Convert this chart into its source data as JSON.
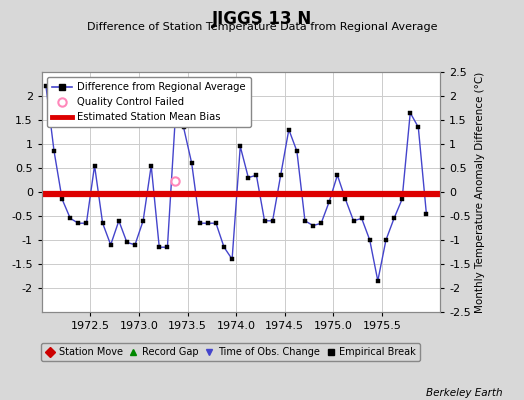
{
  "title": "JIGGS 13 N",
  "subtitle": "Difference of Station Temperature Data from Regional Average",
  "ylabel": "Monthly Temperature Anomaly Difference (°C)",
  "credit": "Berkeley Earth",
  "xlim": [
    1972.0,
    1976.1
  ],
  "ylim": [
    -2.5,
    2.5
  ],
  "yticks_left": [
    -2.0,
    -1.5,
    -1.0,
    -0.5,
    0.0,
    0.5,
    1.0,
    1.5,
    2.0
  ],
  "yticks_right": [
    -2.5,
    -2.0,
    -1.5,
    -1.0,
    -0.5,
    0.0,
    0.5,
    1.0,
    1.5,
    2.0,
    2.5
  ],
  "xticks": [
    1972.5,
    1973.0,
    1973.5,
    1974.0,
    1974.5,
    1975.0,
    1975.5
  ],
  "bias_start": 1972.0,
  "bias_end": 1976.1,
  "bias_value": -0.05,
  "line_color": "#4444cc",
  "bias_color": "#dd0000",
  "bg_color": "#d8d8d8",
  "plot_bg": "#ffffff",
  "qc_x": [
    1973.375
  ],
  "qc_y": [
    0.22
  ],
  "x": [
    1972.042,
    1972.125,
    1972.208,
    1972.292,
    1972.375,
    1972.458,
    1972.542,
    1972.625,
    1972.708,
    1972.792,
    1972.875,
    1972.958,
    1973.042,
    1973.125,
    1973.208,
    1973.292,
    1973.375,
    1973.458,
    1973.542,
    1973.625,
    1973.708,
    1973.792,
    1973.875,
    1973.958,
    1974.042,
    1974.125,
    1974.208,
    1974.292,
    1974.375,
    1974.458,
    1974.542,
    1974.625,
    1974.708,
    1974.792,
    1974.875,
    1974.958,
    1975.042,
    1975.125,
    1975.208,
    1975.292,
    1975.375,
    1975.458,
    1975.542,
    1975.625,
    1975.708,
    1975.792,
    1975.875,
    1975.958
  ],
  "y": [
    2.2,
    0.85,
    -0.15,
    -0.55,
    -0.65,
    -0.65,
    0.55,
    -0.65,
    -1.1,
    -0.6,
    -1.05,
    -1.1,
    -0.6,
    0.55,
    -1.15,
    -1.15,
    1.6,
    1.35,
    0.6,
    -0.65,
    -0.65,
    -0.65,
    -1.15,
    -1.4,
    0.95,
    0.3,
    0.35,
    -0.6,
    -0.6,
    0.35,
    1.3,
    0.85,
    -0.6,
    -0.7,
    -0.65,
    -0.2,
    0.35,
    -0.15,
    -0.6,
    -0.55,
    -1.0,
    -1.85,
    -1.0,
    -0.55,
    -0.15,
    1.65,
    1.35,
    -0.45
  ]
}
